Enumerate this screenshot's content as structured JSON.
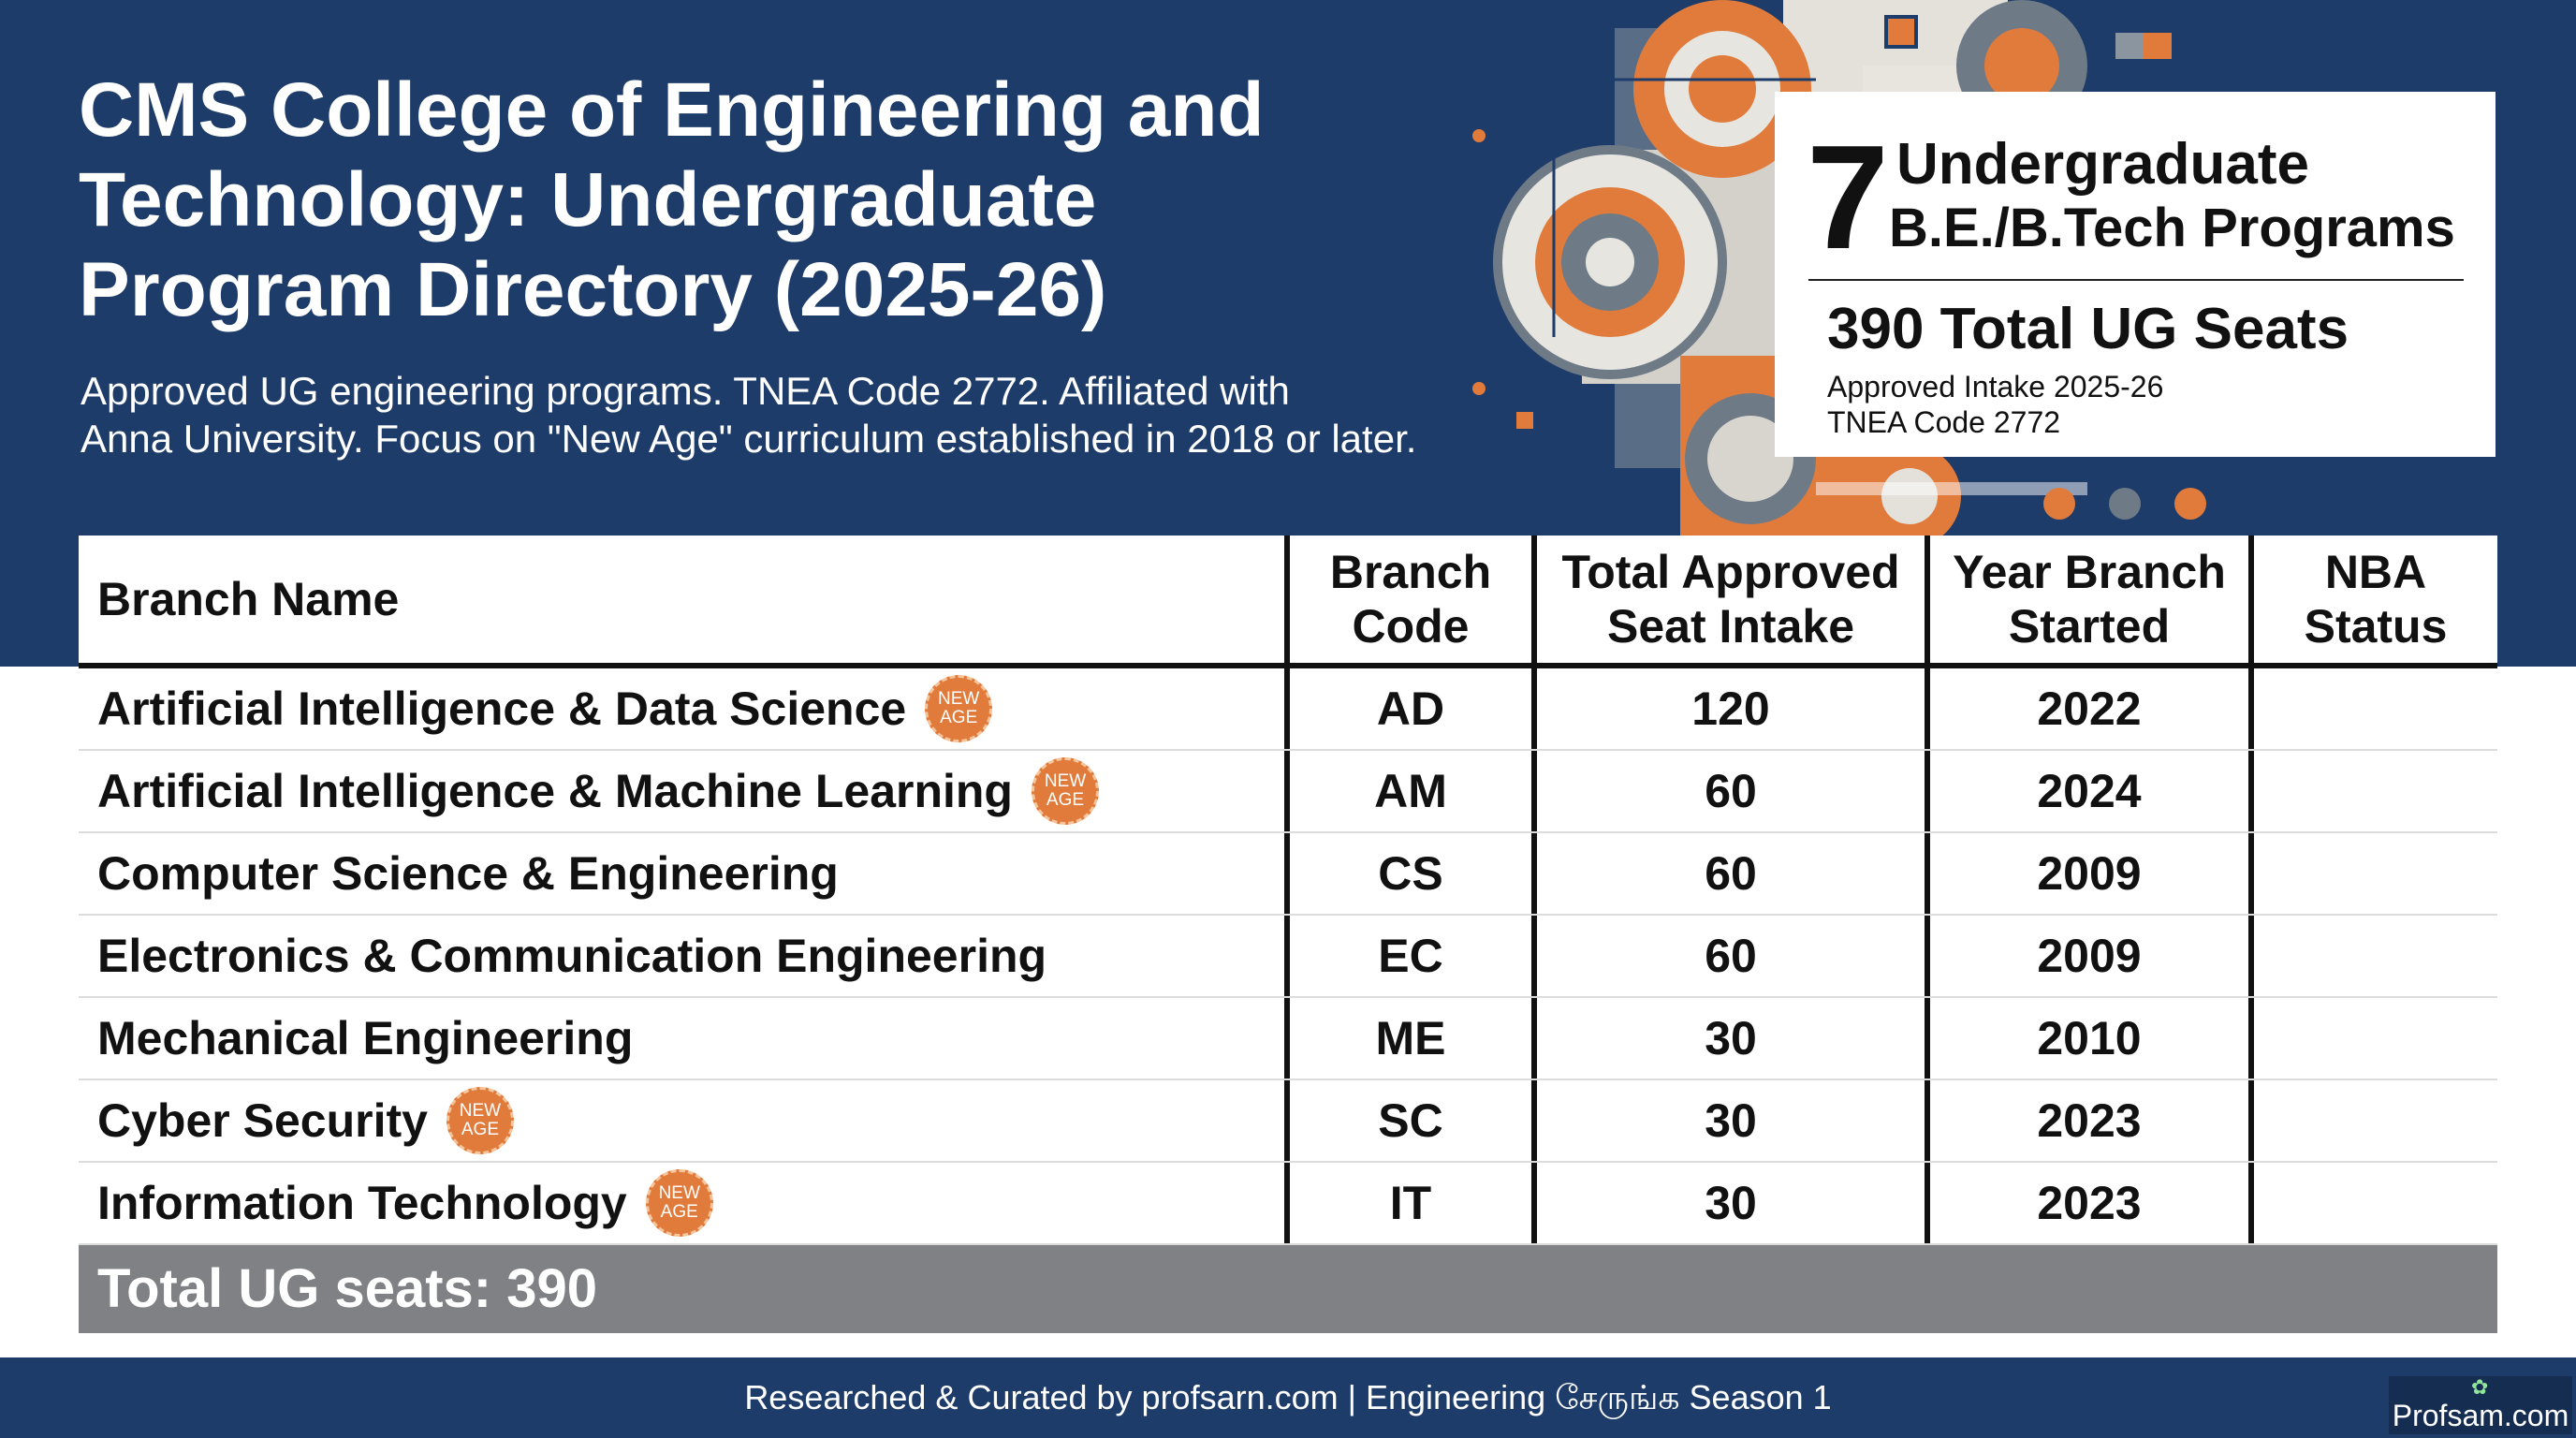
{
  "header": {
    "title_line1": "CMS College of Engineering and",
    "title_line2": "Technology: Undergraduate",
    "title_line3": "Program Directory (2025-26)",
    "subtitle_line1": "Approved UG engineering programs. TNEA Code 2772. Affiliated with",
    "subtitle_line2": "Anna University. Focus on \"New Age\" curriculum established in 2018 or later."
  },
  "stat_card": {
    "big_number": "7",
    "programs_line1": "Undergraduate",
    "programs_line2": "B.E./B.Tech Programs",
    "total_seats": "390 Total UG Seats",
    "intake_label": "Approved Intake 2025-26",
    "tnea_label": "TNEA Code 2772"
  },
  "table": {
    "headers": {
      "branch_name": "Branch Name",
      "branch_code": [
        "Branch",
        "Code"
      ],
      "seats": [
        "Total Approved",
        "Seat Intake"
      ],
      "year": [
        "Year Branch",
        "Started"
      ],
      "nba": [
        "NBA",
        "Status"
      ]
    },
    "badge_text": [
      "NEW",
      "AGE"
    ],
    "rows": [
      {
        "name": "Artificial Intelligence & Data Science",
        "new_age": true,
        "code": "AD",
        "seats": "120",
        "year": "2022",
        "nba": ""
      },
      {
        "name": "Artificial Intelligence & Machine Learning",
        "new_age": true,
        "code": "AM",
        "seats": "60",
        "year": "2024",
        "nba": ""
      },
      {
        "name": "Computer Science & Engineering",
        "new_age": false,
        "code": "CS",
        "seats": "60",
        "year": "2009",
        "nba": ""
      },
      {
        "name": "Electronics & Communication Engineering",
        "new_age": false,
        "code": "EC",
        "seats": "60",
        "year": "2009",
        "nba": ""
      },
      {
        "name": "Mechanical Engineering",
        "new_age": false,
        "code": "ME",
        "seats": "30",
        "year": "2010",
        "nba": ""
      },
      {
        "name": "Cyber Security",
        "new_age": true,
        "code": "SC",
        "seats": "30",
        "year": "2023",
        "nba": ""
      },
      {
        "name": "Information Technology",
        "new_age": true,
        "code": "IT",
        "seats": "30",
        "year": "2023",
        "nba": ""
      }
    ],
    "total_label": "Total UG seats: 390"
  },
  "footer": {
    "credit": "Researched & Curated by profsarn.com | Engineering சேருங்க Season 1",
    "logo_text": "Profsam.com",
    "logo_icon": "sprout-icon"
  },
  "colors": {
    "navy": "#1e3c69",
    "orange_accent": "#e07b3c",
    "total_bar_gray": "#7f8184",
    "deco_gray": "#6f7a87"
  }
}
